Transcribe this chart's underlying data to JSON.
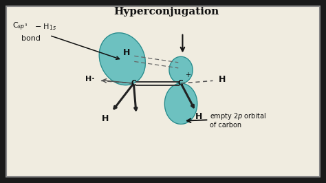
{
  "title": "Hyperconjugation",
  "bg_color": "#d8d0c0",
  "outer_bg": "#1a1a1a",
  "border_color": "#444444",
  "orbital_color": "#5bbcbc",
  "orbital_edge": "#2a8888",
  "orbital_alpha": 0.88,
  "text_color": "#111111",
  "dashed_color": "#666666",
  "arrow_color": "#111111",
  "wedge_color": "#333333",
  "double_bond_color": "#333333",
  "Lc": [
    4.1,
    3.05
  ],
  "Rc": [
    5.55,
    3.05
  ],
  "xlim": [
    0,
    10
  ],
  "ylim": [
    0,
    5.6
  ]
}
